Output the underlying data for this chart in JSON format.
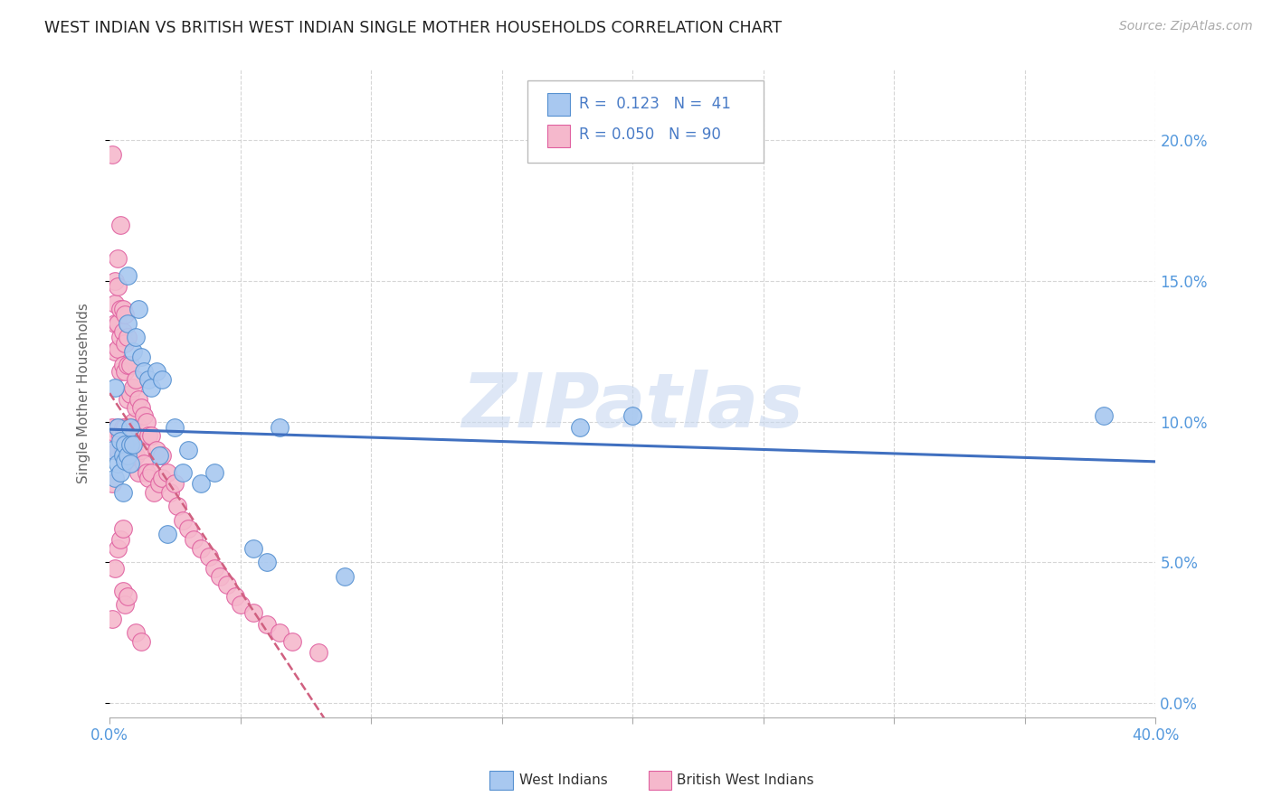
{
  "title": "WEST INDIAN VS BRITISH WEST INDIAN SINGLE MOTHER HOUSEHOLDS CORRELATION CHART",
  "source": "Source: ZipAtlas.com",
  "ylabel": "Single Mother Households",
  "xlim": [
    0.0,
    0.4
  ],
  "ylim": [
    -0.005,
    0.225
  ],
  "xticks": [
    0.0,
    0.05,
    0.1,
    0.15,
    0.2,
    0.25,
    0.3,
    0.35,
    0.4
  ],
  "yticks": [
    0.0,
    0.05,
    0.1,
    0.15,
    0.2
  ],
  "background_color": "#ffffff",
  "grid_color": "#cccccc",
  "color_blue": "#a8c8f0",
  "color_pink": "#f5b8cc",
  "color_blue_edge": "#5590d0",
  "color_pink_edge": "#e060a0",
  "color_blue_line": "#4070c0",
  "color_pink_line": "#d06080",
  "color_blue_text": "#4a7cc7",
  "color_axis_text": "#5599dd",
  "watermark": "ZIPatlas",
  "west_indians_x": [
    0.001,
    0.002,
    0.002,
    0.003,
    0.003,
    0.004,
    0.004,
    0.005,
    0.005,
    0.006,
    0.006,
    0.007,
    0.007,
    0.007,
    0.008,
    0.008,
    0.008,
    0.009,
    0.009,
    0.01,
    0.011,
    0.012,
    0.013,
    0.015,
    0.016,
    0.018,
    0.019,
    0.02,
    0.022,
    0.025,
    0.028,
    0.03,
    0.035,
    0.04,
    0.055,
    0.06,
    0.065,
    0.09,
    0.18,
    0.2,
    0.38
  ],
  "west_indians_y": [
    0.09,
    0.112,
    0.08,
    0.098,
    0.085,
    0.093,
    0.082,
    0.088,
    0.075,
    0.092,
    0.086,
    0.152,
    0.135,
    0.088,
    0.098,
    0.092,
    0.085,
    0.125,
    0.092,
    0.13,
    0.14,
    0.123,
    0.118,
    0.115,
    0.112,
    0.118,
    0.088,
    0.115,
    0.06,
    0.098,
    0.082,
    0.09,
    0.078,
    0.082,
    0.055,
    0.05,
    0.098,
    0.045,
    0.098,
    0.102,
    0.102
  ],
  "british_west_indians_x": [
    0.001,
    0.001,
    0.001,
    0.001,
    0.002,
    0.002,
    0.002,
    0.002,
    0.002,
    0.003,
    0.003,
    0.003,
    0.003,
    0.003,
    0.003,
    0.004,
    0.004,
    0.004,
    0.004,
    0.004,
    0.005,
    0.005,
    0.005,
    0.005,
    0.005,
    0.006,
    0.006,
    0.006,
    0.006,
    0.007,
    0.007,
    0.007,
    0.007,
    0.008,
    0.008,
    0.008,
    0.008,
    0.009,
    0.009,
    0.009,
    0.01,
    0.01,
    0.01,
    0.011,
    0.011,
    0.011,
    0.012,
    0.012,
    0.013,
    0.013,
    0.014,
    0.014,
    0.015,
    0.015,
    0.016,
    0.016,
    0.017,
    0.018,
    0.019,
    0.02,
    0.02,
    0.022,
    0.023,
    0.025,
    0.026,
    0.028,
    0.03,
    0.032,
    0.035,
    0.038,
    0.04,
    0.042,
    0.045,
    0.048,
    0.05,
    0.055,
    0.06,
    0.065,
    0.07,
    0.08,
    0.001,
    0.002,
    0.003,
    0.004,
    0.005,
    0.005,
    0.006,
    0.007,
    0.01,
    0.012
  ],
  "british_west_indians_y": [
    0.195,
    0.098,
    0.09,
    0.078,
    0.15,
    0.142,
    0.135,
    0.125,
    0.096,
    0.158,
    0.148,
    0.135,
    0.126,
    0.098,
    0.09,
    0.17,
    0.14,
    0.13,
    0.118,
    0.095,
    0.14,
    0.132,
    0.12,
    0.098,
    0.09,
    0.138,
    0.128,
    0.118,
    0.098,
    0.13,
    0.12,
    0.108,
    0.092,
    0.12,
    0.11,
    0.098,
    0.085,
    0.112,
    0.1,
    0.088,
    0.115,
    0.105,
    0.088,
    0.108,
    0.098,
    0.082,
    0.105,
    0.09,
    0.102,
    0.085,
    0.1,
    0.082,
    0.095,
    0.08,
    0.095,
    0.082,
    0.075,
    0.09,
    0.078,
    0.088,
    0.08,
    0.082,
    0.075,
    0.078,
    0.07,
    0.065,
    0.062,
    0.058,
    0.055,
    0.052,
    0.048,
    0.045,
    0.042,
    0.038,
    0.035,
    0.032,
    0.028,
    0.025,
    0.022,
    0.018,
    0.03,
    0.048,
    0.055,
    0.058,
    0.062,
    0.04,
    0.035,
    0.038,
    0.025,
    0.022
  ]
}
